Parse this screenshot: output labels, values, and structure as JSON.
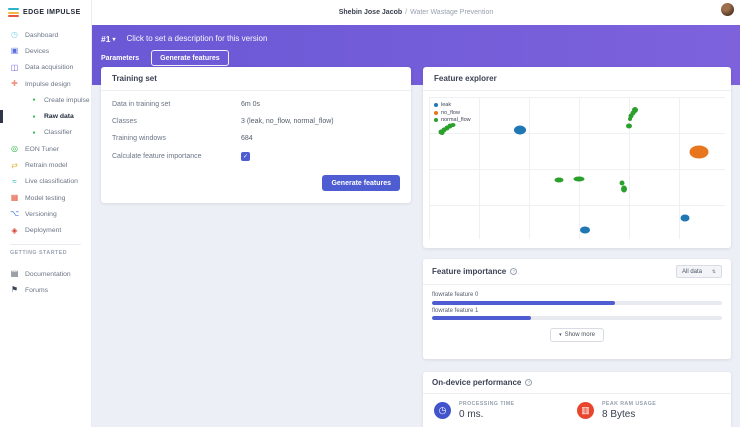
{
  "colors": {
    "leak": "#1f77b4",
    "no_flow": "#e8761e",
    "normal_flow": "#2ca02c",
    "indigo": "#4e5ed2",
    "purple_start": "#6a58d5",
    "purple_end": "#7d62dc"
  },
  "brand": {
    "name": "EDGE IMPULSE",
    "logo_colors": [
      "#29b4c8",
      "#f4b73f",
      "#e4573d"
    ]
  },
  "header": {
    "user_name": "Shebin Jose Jacob",
    "separator": "/",
    "project_name": "Water Wastage Prevention"
  },
  "version_bar": {
    "version_label": "#1",
    "caret": "▾",
    "description": "Click to set a description for this version"
  },
  "tabs": [
    {
      "label": "Parameters"
    },
    {
      "label": "Generate features"
    }
  ],
  "sidebar": {
    "items": [
      {
        "label": "Dashboard",
        "name": "dashboard",
        "glyph": "◷",
        "color": "#7fd0ea",
        "type": "item"
      },
      {
        "label": "Devices",
        "name": "devices",
        "glyph": "▣",
        "color": "#5b6ee1",
        "type": "item"
      },
      {
        "label": "Data acquisition",
        "name": "data-acquisition",
        "glyph": "◫",
        "color": "#7a5fd8",
        "type": "item"
      },
      {
        "label": "Impulse design",
        "name": "impulse-design",
        "glyph": "✚",
        "color": "#f0907e",
        "type": "item"
      },
      {
        "label": "Create impulse",
        "name": "create-impulse",
        "glyph": "●",
        "color": "#2fb344",
        "type": "sub"
      },
      {
        "label": "Raw data",
        "name": "raw-data",
        "glyph": "●",
        "color": "#2fb344",
        "type": "sub",
        "active": true
      },
      {
        "label": "Classifier",
        "name": "classifier",
        "glyph": "●",
        "color": "#2fb344",
        "type": "sub"
      },
      {
        "label": "EON Tuner",
        "name": "eon-tuner",
        "glyph": "◎",
        "color": "#2fb344",
        "type": "item"
      },
      {
        "label": "Retrain model",
        "name": "retrain-model",
        "glyph": "⇄",
        "color": "#e9b949",
        "type": "item"
      },
      {
        "label": "Live classification",
        "name": "live-classification",
        "glyph": "≈",
        "color": "#27b5ad",
        "type": "item"
      },
      {
        "label": "Model testing",
        "name": "model-testing",
        "glyph": "▦",
        "color": "#e4573d",
        "type": "item"
      },
      {
        "label": "Versioning",
        "name": "versioning",
        "glyph": "⌥",
        "color": "#4e79e4",
        "type": "item"
      },
      {
        "label": "Deployment",
        "name": "deployment",
        "glyph": "◈",
        "color": "#d3402e",
        "type": "item"
      }
    ],
    "section_label": "GETTING STARTED",
    "secondary_items": [
      {
        "label": "Documentation",
        "name": "documentation",
        "glyph": "▤",
        "color": "#3d4654"
      },
      {
        "label": "Forums",
        "name": "forums",
        "glyph": "⚑",
        "color": "#3d4654"
      }
    ]
  },
  "training_set": {
    "title": "Training set",
    "rows": [
      {
        "label": "Data in training set",
        "value": "6m 0s"
      },
      {
        "label": "Classes",
        "value": "3 (leak, no_flow, normal_flow)"
      },
      {
        "label": "Training windows",
        "value": "684"
      },
      {
        "label": "Calculate feature importance",
        "value": "checked",
        "type": "checkbox",
        "check_glyph": "✓"
      }
    ],
    "button_label": "Generate features"
  },
  "feature_explorer": {
    "title": "Feature explorer",
    "legend": [
      {
        "label": "leak",
        "color_key": "leak"
      },
      {
        "label": "no_flow",
        "color_key": "no_flow"
      },
      {
        "label": "normal_flow",
        "color_key": "normal_flow"
      }
    ],
    "points": [
      {
        "x": 4.0,
        "y": 24.3,
        "c": "normal_flow",
        "w": 5,
        "h": 5
      },
      {
        "x": 4.3,
        "y": 25.7,
        "c": "normal_flow",
        "w": 5,
        "h": 4
      },
      {
        "x": 5.0,
        "y": 23.0,
        "c": "normal_flow",
        "w": 5,
        "h": 5
      },
      {
        "x": 6.0,
        "y": 21.6,
        "c": "normal_flow",
        "w": 5,
        "h": 5
      },
      {
        "x": 7.0,
        "y": 20.3,
        "c": "normal_flow",
        "w": 5,
        "h": 5
      },
      {
        "x": 8.0,
        "y": 19.6,
        "c": "normal_flow",
        "w": 5,
        "h": 4
      },
      {
        "x": 30.8,
        "y": 23.0,
        "c": "leak",
        "w": 12,
        "h": 9
      },
      {
        "x": 69.6,
        "y": 9.5,
        "c": "normal_flow",
        "w": 6,
        "h": 6
      },
      {
        "x": 68.9,
        "y": 11.5,
        "c": "normal_flow",
        "w": 5,
        "h": 5
      },
      {
        "x": 68.2,
        "y": 13.5,
        "c": "normal_flow",
        "w": 5,
        "h": 5
      },
      {
        "x": 67.9,
        "y": 15.5,
        "c": "normal_flow",
        "w": 4,
        "h": 4
      },
      {
        "x": 67.6,
        "y": 20.3,
        "c": "normal_flow",
        "w": 6,
        "h": 5
      },
      {
        "x": 91.3,
        "y": 38.5,
        "c": "no_flow",
        "w": 19,
        "h": 13
      },
      {
        "x": 43.8,
        "y": 58.1,
        "c": "normal_flow",
        "w": 9,
        "h": 5
      },
      {
        "x": 50.8,
        "y": 57.8,
        "c": "normal_flow",
        "w": 11,
        "h": 5
      },
      {
        "x": 65.2,
        "y": 60.8,
        "c": "normal_flow",
        "w": 5,
        "h": 5
      },
      {
        "x": 65.9,
        "y": 64.9,
        "c": "normal_flow",
        "w": 6,
        "h": 7
      },
      {
        "x": 86.6,
        "y": 85.1,
        "c": "leak",
        "w": 9,
        "h": 7
      },
      {
        "x": 52.8,
        "y": 93.9,
        "c": "leak",
        "w": 10,
        "h": 7
      }
    ]
  },
  "feature_importance": {
    "title": "Feature importance",
    "help_icon": "?",
    "filter_value": "All data",
    "filter_arrows": "⇅",
    "bars": [
      {
        "label": "flowrate feature 0",
        "percent": 63
      },
      {
        "label": "flowrate feature 1",
        "percent": 34
      }
    ],
    "show_more_caret": "▾",
    "show_more_label": "Show more"
  },
  "on_device_performance": {
    "title": "On-device performance",
    "help_icon": "?",
    "stats": [
      {
        "label": "PROCESSING TIME",
        "value": "0 ms.",
        "icon": "clock-icon",
        "glyph": "◷",
        "color": "#4154cb"
      },
      {
        "label": "PEAK RAM USAGE",
        "value": "8 Bytes",
        "icon": "ram-icon",
        "glyph": "▥",
        "color": "#e8462c"
      }
    ]
  }
}
